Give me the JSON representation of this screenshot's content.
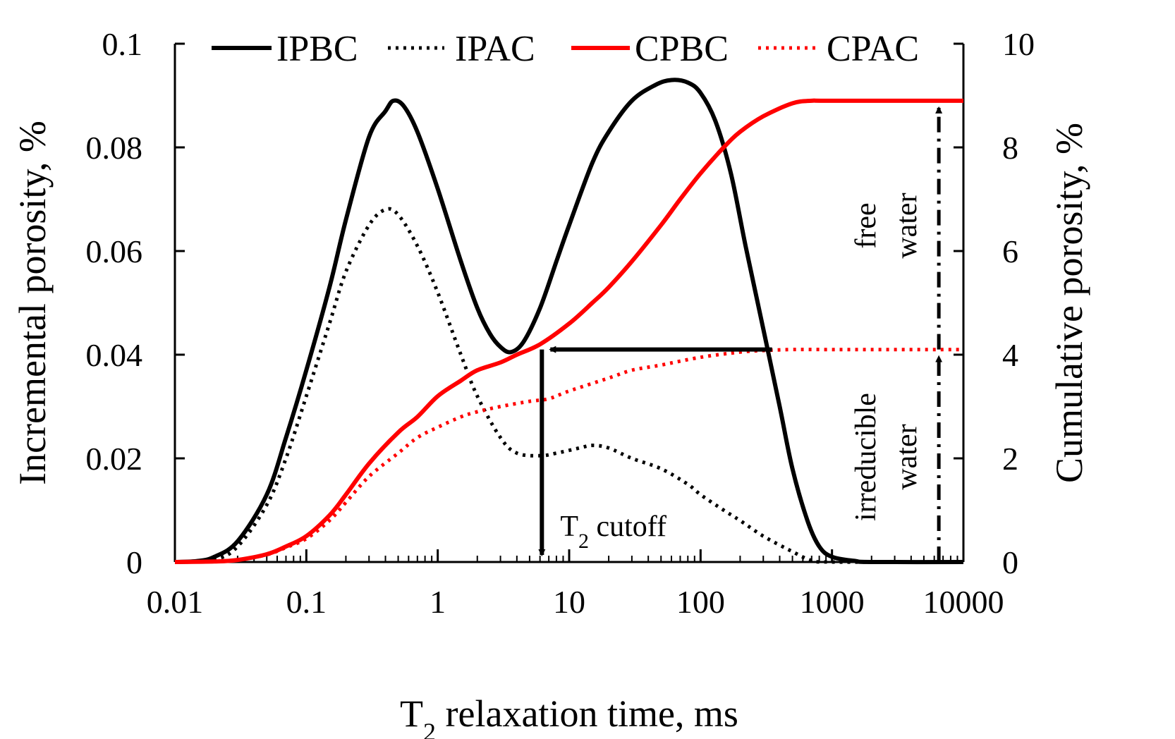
{
  "chart_data": {
    "type": "line",
    "xlabel_main": "T",
    "xlabel_sub": "2",
    "xlabel_rest": " relaxation time, ms",
    "ylabel_left": "Incremental porosity, %",
    "ylabel_right": "Cumulative porosity, %",
    "x_scale": "log",
    "xlim": [
      0.01,
      10000
    ],
    "ylim_left": [
      0,
      0.1
    ],
    "ylim_right": [
      0,
      10
    ],
    "x_ticks": [
      {
        "value": 0.01,
        "label": "0.01"
      },
      {
        "value": 0.1,
        "label": "0.1"
      },
      {
        "value": 1,
        "label": "1"
      },
      {
        "value": 10,
        "label": "10"
      },
      {
        "value": 100,
        "label": "100"
      },
      {
        "value": 1000,
        "label": "1000"
      },
      {
        "value": 10000,
        "label": "10000"
      }
    ],
    "y_left_ticks": [
      {
        "value": 0,
        "label": "0"
      },
      {
        "value": 0.02,
        "label": "0.02"
      },
      {
        "value": 0.04,
        "label": "0.04"
      },
      {
        "value": 0.06,
        "label": "0.06"
      },
      {
        "value": 0.08,
        "label": "0.08"
      },
      {
        "value": 0.1,
        "label": "0.1"
      }
    ],
    "y_right_ticks": [
      {
        "value": 0,
        "label": "0"
      },
      {
        "value": 2,
        "label": "2"
      },
      {
        "value": 4,
        "label": "4"
      },
      {
        "value": 6,
        "label": "6"
      },
      {
        "value": 8,
        "label": "8"
      },
      {
        "value": 10,
        "label": "10"
      }
    ],
    "series": [
      {
        "name": "IPBC",
        "axis": "left",
        "color": "#000000",
        "style": "solid",
        "points": [
          [
            0.01,
            0
          ],
          [
            0.015,
            0.0002
          ],
          [
            0.02,
            0.001
          ],
          [
            0.03,
            0.004
          ],
          [
            0.05,
            0.013
          ],
          [
            0.07,
            0.024
          ],
          [
            0.1,
            0.037
          ],
          [
            0.15,
            0.053
          ],
          [
            0.2,
            0.066
          ],
          [
            0.3,
            0.082
          ],
          [
            0.4,
            0.087
          ],
          [
            0.46,
            0.089
          ],
          [
            0.55,
            0.088
          ],
          [
            0.7,
            0.083
          ],
          [
            1,
            0.072
          ],
          [
            1.5,
            0.058
          ],
          [
            2,
            0.049
          ],
          [
            2.5,
            0.044
          ],
          [
            3,
            0.0415
          ],
          [
            3.6,
            0.0405
          ],
          [
            4.5,
            0.0425
          ],
          [
            6,
            0.049
          ],
          [
            8,
            0.058
          ],
          [
            10,
            0.065
          ],
          [
            15,
            0.077
          ],
          [
            20,
            0.083
          ],
          [
            30,
            0.089
          ],
          [
            45,
            0.092
          ],
          [
            60,
            0.093
          ],
          [
            80,
            0.0925
          ],
          [
            100,
            0.0905
          ],
          [
            130,
            0.085
          ],
          [
            170,
            0.075
          ],
          [
            220,
            0.061
          ],
          [
            300,
            0.045
          ],
          [
            400,
            0.03
          ],
          [
            500,
            0.018
          ],
          [
            650,
            0.008
          ],
          [
            800,
            0.003
          ],
          [
            1000,
            0.001
          ],
          [
            1500,
            0.0002
          ],
          [
            2000,
            0
          ],
          [
            10000,
            0
          ]
        ]
      },
      {
        "name": "IPAC",
        "axis": "left",
        "color": "#000000",
        "style": "dotted",
        "points": [
          [
            0.01,
            0
          ],
          [
            0.02,
            0.0005
          ],
          [
            0.03,
            0.003
          ],
          [
            0.05,
            0.011
          ],
          [
            0.07,
            0.02
          ],
          [
            0.1,
            0.032
          ],
          [
            0.15,
            0.046
          ],
          [
            0.2,
            0.056
          ],
          [
            0.3,
            0.065
          ],
          [
            0.4,
            0.068
          ],
          [
            0.5,
            0.067
          ],
          [
            0.7,
            0.061
          ],
          [
            1,
            0.052
          ],
          [
            1.5,
            0.04
          ],
          [
            2,
            0.032
          ],
          [
            3,
            0.024
          ],
          [
            4,
            0.021
          ],
          [
            6,
            0.0205
          ],
          [
            8,
            0.021
          ],
          [
            12,
            0.022
          ],
          [
            15,
            0.0225
          ],
          [
            20,
            0.022
          ],
          [
            30,
            0.02
          ],
          [
            50,
            0.018
          ],
          [
            80,
            0.015
          ],
          [
            100,
            0.013
          ],
          [
            150,
            0.01
          ],
          [
            200,
            0.008
          ],
          [
            300,
            0.005
          ],
          [
            500,
            0.002
          ],
          [
            700,
            0.0003
          ],
          [
            1000,
            0
          ],
          [
            10000,
            0
          ]
        ]
      },
      {
        "name": "CPBC",
        "axis": "right",
        "color": "#ff0000",
        "style": "solid",
        "points": [
          [
            0.01,
            0
          ],
          [
            0.02,
            0.01
          ],
          [
            0.03,
            0.04
          ],
          [
            0.05,
            0.15
          ],
          [
            0.07,
            0.3
          ],
          [
            0.1,
            0.5
          ],
          [
            0.15,
            0.9
          ],
          [
            0.2,
            1.3
          ],
          [
            0.3,
            1.9
          ],
          [
            0.5,
            2.5
          ],
          [
            0.7,
            2.8
          ],
          [
            1,
            3.2
          ],
          [
            1.5,
            3.5
          ],
          [
            2,
            3.7
          ],
          [
            3,
            3.85
          ],
          [
            4,
            4.0
          ],
          [
            6,
            4.2
          ],
          [
            10,
            4.6
          ],
          [
            15,
            5.0
          ],
          [
            20,
            5.3
          ],
          [
            30,
            5.8
          ],
          [
            50,
            6.5
          ],
          [
            70,
            7.0
          ],
          [
            100,
            7.5
          ],
          [
            150,
            8.0
          ],
          [
            200,
            8.3
          ],
          [
            300,
            8.6
          ],
          [
            500,
            8.85
          ],
          [
            700,
            8.9
          ],
          [
            1000,
            8.9
          ],
          [
            10000,
            8.9
          ]
        ]
      },
      {
        "name": "CPAC",
        "axis": "right",
        "color": "#ff0000",
        "style": "dotted",
        "points": [
          [
            0.01,
            0
          ],
          [
            0.02,
            0.01
          ],
          [
            0.03,
            0.04
          ],
          [
            0.05,
            0.14
          ],
          [
            0.07,
            0.28
          ],
          [
            0.1,
            0.45
          ],
          [
            0.15,
            0.8
          ],
          [
            0.2,
            1.15
          ],
          [
            0.3,
            1.65
          ],
          [
            0.5,
            2.1
          ],
          [
            0.7,
            2.4
          ],
          [
            1,
            2.6
          ],
          [
            1.5,
            2.8
          ],
          [
            2,
            2.9
          ],
          [
            3,
            3.0
          ],
          [
            5,
            3.1
          ],
          [
            7,
            3.15
          ],
          [
            10,
            3.3
          ],
          [
            20,
            3.55
          ],
          [
            30,
            3.7
          ],
          [
            50,
            3.8
          ],
          [
            100,
            3.95
          ],
          [
            200,
            4.05
          ],
          [
            300,
            4.08
          ],
          [
            500,
            4.1
          ],
          [
            1000,
            4.1
          ],
          [
            10000,
            4.1
          ]
        ]
      }
    ],
    "annotations": {
      "cutoff_label_main": "T",
      "cutoff_label_sub": "2",
      "cutoff_label_rest": " cutoff",
      "t2_cutoff_ms": 6.2,
      "horizontal_arrow": {
        "from_x": 350,
        "to_x": 6.2,
        "y_right": 4.1
      },
      "vertical_arrow": {
        "x": 6.2,
        "from_y_right": 4.1,
        "to_y_right": 0
      },
      "water_arrow_x_ms": 6500,
      "irreducible_water_top_y_right": 4.1,
      "free_water_top_y_right": 8.9,
      "irreducible_label_1": "irreducible",
      "irreducible_label_2": "water",
      "free_label_1": "free",
      "free_label_2": "water"
    }
  }
}
